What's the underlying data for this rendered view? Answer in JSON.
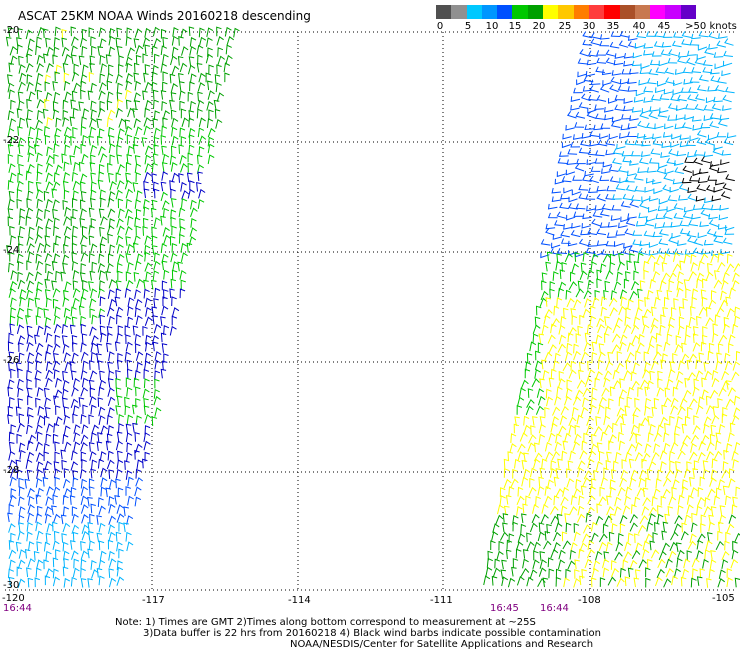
{
  "title": "ASCAT 25KM NOAA Winds 20160218 descending",
  "legend": {
    "colors": [
      "#505050",
      "#909090",
      "#00c8ff",
      "#0096ff",
      "#0050ff",
      "#00c800",
      "#00a000",
      "#ffff00",
      "#ffc800",
      "#ff7d00",
      "#ff3c3c",
      "#ff0000",
      "#aa5028",
      "#c87850",
      "#ff00ff",
      "#c800ff",
      "#6400c8"
    ],
    "labels": [
      "0",
      "5",
      "10",
      "15",
      "20",
      "25",
      "30",
      "35",
      "40",
      "45",
      ">50 knots"
    ]
  },
  "axes": {
    "lon_labels": [
      "-120",
      "-117",
      "-114",
      "-111",
      "-108",
      "-105"
    ],
    "lat_labels": [
      "-20",
      "-22",
      "-24",
      "-26",
      "-28",
      "-30"
    ]
  },
  "times": [
    "16:44",
    "16:45",
    "16:44"
  ],
  "notes": [
    "Note: 1) Times are GMT 2)Times along bottom correspond to measurement at ~25S",
    "3)Data buffer is 22 hrs from 20160218 4) Black wind barbs indicate possible contamination",
    "NOAA/NESDIS/Center for Satellite Applications and Research"
  ]
}
